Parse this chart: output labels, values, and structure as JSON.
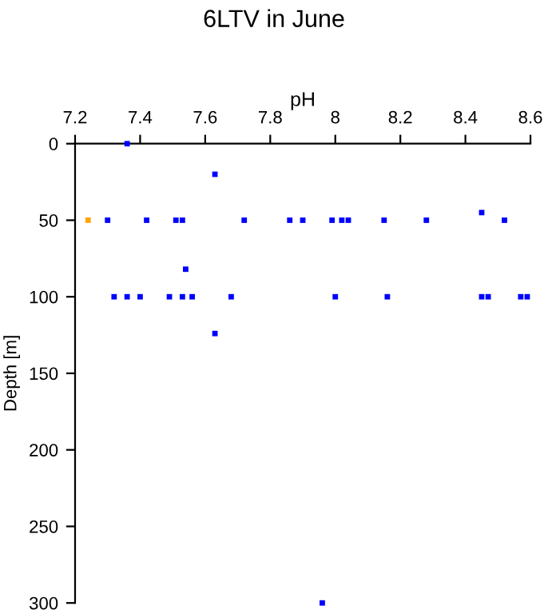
{
  "chart_data": {
    "type": "scatter",
    "title": "6LTV in June",
    "xlabel": "pH",
    "ylabel": "Depth [m]",
    "xlim": [
      7.2,
      8.6
    ],
    "xticks": [
      7.2,
      7.4,
      7.6,
      7.8,
      8,
      8.2,
      8.4,
      8.6
    ],
    "ylim": [
      300,
      0
    ],
    "yticks": [
      0,
      50,
      100,
      150,
      200,
      250,
      300
    ],
    "grid": false,
    "marker": "square",
    "series": [
      {
        "color": "#ffa500",
        "x": [
          7.24
        ],
        "values": [
          50
        ]
      },
      {
        "color": "#0000ff",
        "x": [
          7.36,
          7.63,
          7.3,
          7.42,
          7.51,
          7.53,
          7.72,
          7.86,
          7.9,
          7.99,
          8.02,
          8.04,
          8.15,
          8.28,
          8.45,
          8.52,
          7.54,
          7.32,
          7.36,
          7.4,
          7.49,
          7.53,
          7.56,
          7.68,
          8.0,
          8.16,
          8.45,
          8.47,
          8.57,
          8.59,
          7.63,
          7.96
        ],
        "values": [
          0,
          20,
          50,
          50,
          50,
          50,
          50,
          50,
          50,
          50,
          50,
          50,
          50,
          50,
          45,
          50,
          82,
          100,
          100,
          100,
          100,
          100,
          100,
          100,
          100,
          100,
          100,
          100,
          100,
          100,
          124,
          300
        ]
      }
    ]
  }
}
